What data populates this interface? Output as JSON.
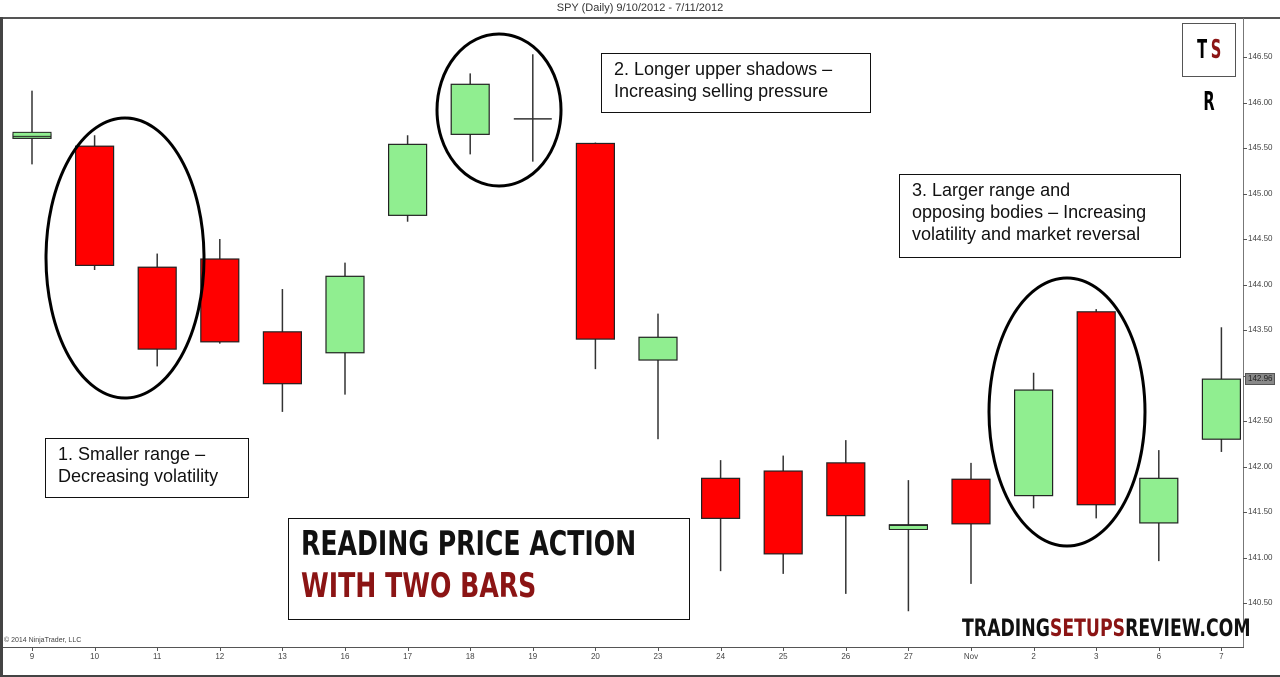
{
  "header": {
    "title": "SPY (Daily)  9/10/2012 - 7/11/2012"
  },
  "footer": {
    "copyright": "© 2014 NinjaTrader, LLC"
  },
  "logo": {
    "t": "T",
    "s": "S",
    "r": "R"
  },
  "banner": {
    "line1": "READING PRICE ACTION",
    "line2": "WITH TWO BARS"
  },
  "site": {
    "part1": "TRADING",
    "part2": "SETUPS",
    "part3": "REVIEW.COM"
  },
  "annotations": [
    {
      "id": 1,
      "line1": "1. Smaller range –",
      "line2": "Decreasing volatility",
      "line3": ""
    },
    {
      "id": 2,
      "line1": "2. Longer upper shadows –",
      "line2": "Increasing selling pressure",
      "line3": ""
    },
    {
      "id": 3,
      "line1": "3. Larger range and",
      "line2": "opposing bodies – Increasing",
      "line3": "volatility and market reversal"
    }
  ],
  "last_price_label": "142.96",
  "colors": {
    "up": "#90ee90",
    "down": "#ff0000",
    "wick": "#333333",
    "accent": "#8b1414"
  },
  "chart_data": {
    "type": "candlestick",
    "title": "SPY (Daily)  9/10/2012 - 7/11/2012",
    "xlabel": "",
    "ylabel": "",
    "ylim": [
      140.25,
      146.95
    ],
    "y_ticks": [
      "140.50",
      "141.00",
      "141.50",
      "142.00",
      "142.50",
      "143.00",
      "143.50",
      "144.00",
      "144.50",
      "145.00",
      "145.50",
      "146.00",
      "146.50"
    ],
    "categories": [
      "9",
      "10",
      "11",
      "12",
      "13",
      "16",
      "17",
      "18",
      "19",
      "20",
      "23",
      "24",
      "25",
      "26",
      "27",
      "Nov",
      "2",
      "3",
      "6",
      "7"
    ],
    "open": [
      145.62,
      145.52,
      144.19,
      144.28,
      143.48,
      143.25,
      144.76,
      145.65,
      145.82,
      145.55,
      143.17,
      141.87,
      141.95,
      142.04,
      141.33,
      141.86,
      141.68,
      143.7,
      141.38,
      142.3
    ],
    "high": [
      146.13,
      145.64,
      144.34,
      144.5,
      143.95,
      144.24,
      145.64,
      146.32,
      146.53,
      145.56,
      143.68,
      142.07,
      142.12,
      142.29,
      141.85,
      142.04,
      143.03,
      143.73,
      142.18,
      143.53
    ],
    "low": [
      145.32,
      144.16,
      143.1,
      143.35,
      142.6,
      142.79,
      144.69,
      145.43,
      145.35,
      143.07,
      142.3,
      140.85,
      140.82,
      140.6,
      140.41,
      140.71,
      141.54,
      141.43,
      140.96,
      142.16
    ],
    "close": [
      145.65,
      144.21,
      143.29,
      143.37,
      142.91,
      144.09,
      145.54,
      146.2,
      145.82,
      143.4,
      143.42,
      141.43,
      141.04,
      141.46,
      141.36,
      141.37,
      142.84,
      141.58,
      141.87,
      142.96
    ],
    "last_price": 142.96,
    "grid": false,
    "highlights": [
      {
        "label": "1",
        "bars": [
          "10",
          "11"
        ]
      },
      {
        "label": "2",
        "bars": [
          "18",
          "19"
        ]
      },
      {
        "label": "3",
        "bars": [
          "2",
          "3"
        ]
      }
    ]
  }
}
